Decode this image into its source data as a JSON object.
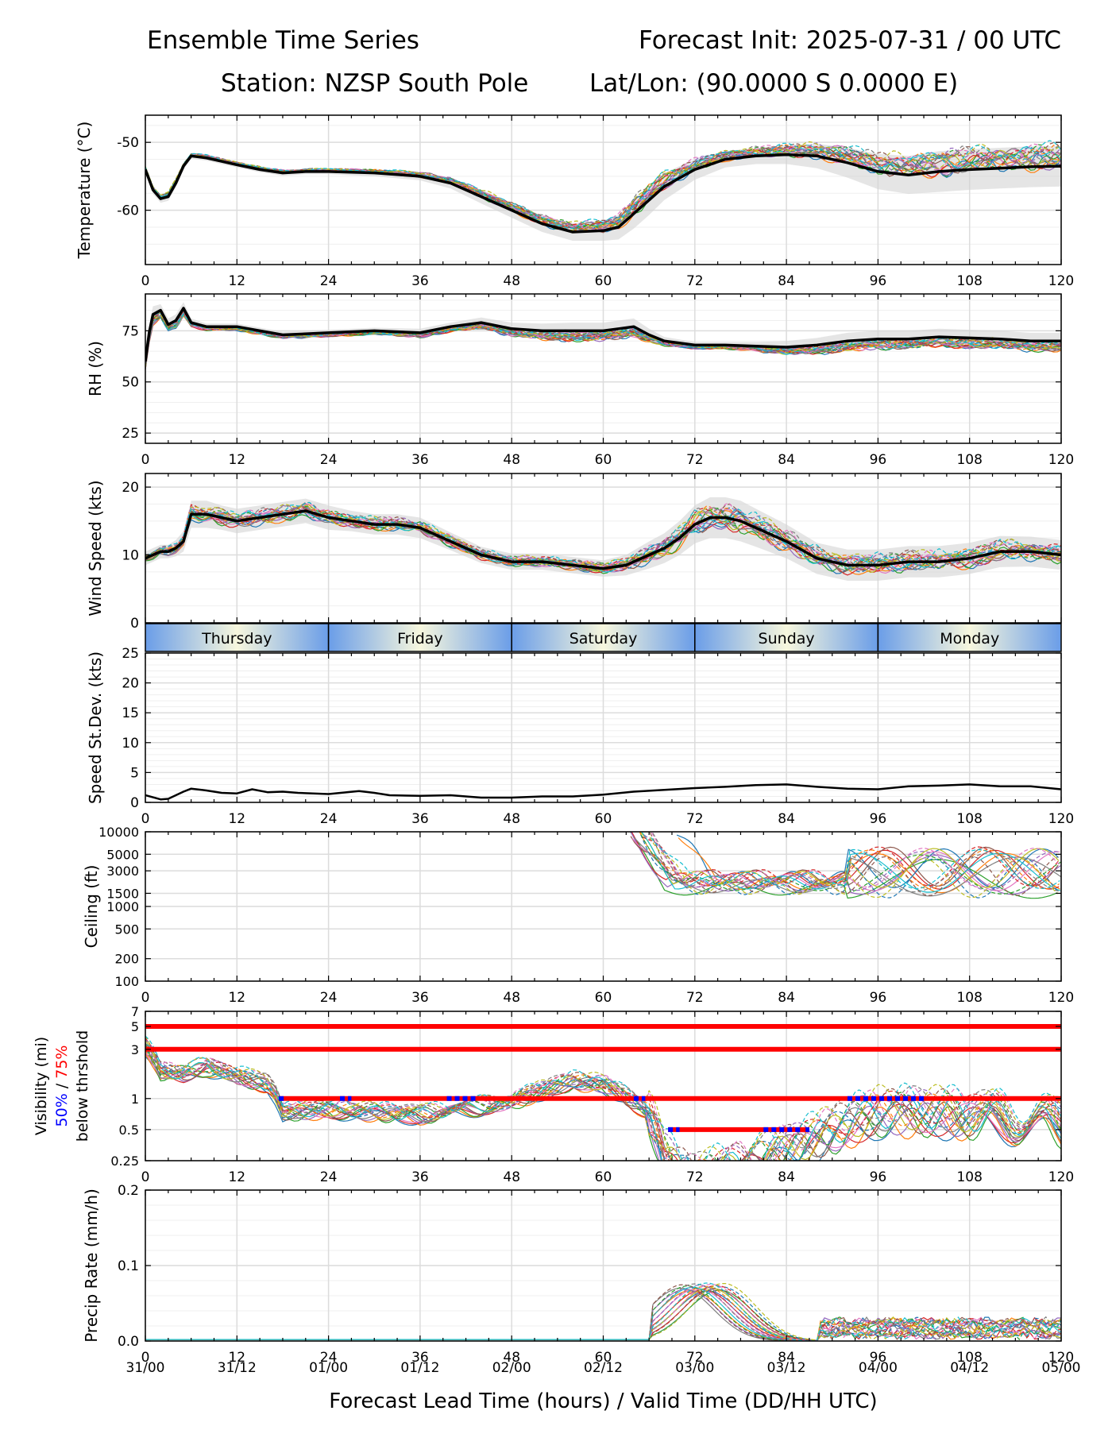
{
  "header": {
    "title": "Ensemble Time Series",
    "init": "Forecast Init: 2025-07-31 / 00 UTC",
    "station": "Station: NZSP South Pole",
    "latlon": "Lat/Lon: (90.0000 S 0.0000 E)"
  },
  "xaxis": {
    "hour_ticks": [
      "0",
      "12",
      "24",
      "36",
      "48",
      "60",
      "72",
      "84",
      "96",
      "108",
      "120"
    ],
    "valid_ticks": [
      "31/00",
      "31/12",
      "01/00",
      "01/12",
      "02/00",
      "02/12",
      "03/00",
      "03/12",
      "04/00",
      "04/12",
      "05/00"
    ],
    "label": "Forecast Lead Time (hours) / Valid Time (DD/HH UTC)"
  },
  "days": [
    "Thursday",
    "Friday",
    "Saturday",
    "Sunday",
    "Monday"
  ],
  "vis_ylabel": {
    "line1": "Visibility (mi)",
    "p50": "50%",
    "sep": " / ",
    "p75": "75%",
    "line3": "below thrshold"
  },
  "colors": {
    "mean": "#000000",
    "p50_marker": "#0000ff",
    "p75_marker": "#ff0000",
    "spread_fill": "#d3d3d3",
    "day_gradient_edge": "#6a9de8",
    "day_gradient_center": "#f7f7dd",
    "members": [
      "#1f77b4",
      "#ff7f0e",
      "#2ca02c",
      "#d62728",
      "#9467bd",
      "#8c564b",
      "#e377c2",
      "#7f7f7f",
      "#bcbd22",
      "#17becf"
    ]
  },
  "chart_data": [
    {
      "id": "temperature",
      "type": "line",
      "ylabel": "Temperature (°C)",
      "ylim": [
        -68,
        -46
      ],
      "yticks": [
        "-50",
        "-60"
      ],
      "ytick_values": [
        -50,
        -60
      ],
      "x": [
        0,
        1,
        2,
        3,
        4,
        5,
        6,
        8,
        10,
        12,
        15,
        18,
        21,
        24,
        30,
        36,
        40,
        44,
        48,
        52,
        56,
        60,
        62,
        64,
        66,
        68,
        72,
        76,
        80,
        84,
        88,
        92,
        96,
        100,
        104,
        108,
        112,
        116,
        120
      ],
      "series": [
        {
          "values": [
            -54,
            -57,
            -58.3,
            -58,
            -56,
            -53.5,
            -52,
            -52.3,
            -52.8,
            -53.3,
            -54,
            -54.5,
            -54.3,
            -54.3,
            -54.5,
            -55,
            -56,
            -58,
            -60,
            -62,
            -63.2,
            -63,
            -62.5,
            -60.5,
            -58.5,
            -56.5,
            -54,
            -52.5,
            -52,
            -51.8,
            -52,
            -53,
            -54.3,
            -54.8,
            -54.3,
            -54,
            -53.8,
            -53.6,
            -53.5
          ]
        }
      ],
      "spread_halfwidth": [
        0.5,
        0.6,
        0.6,
        0.6,
        0.6,
        0.5,
        0.4,
        0.4,
        0.4,
        0.4,
        0.4,
        0.4,
        0.4,
        0.4,
        0.5,
        0.6,
        0.8,
        1.0,
        1.1,
        1.2,
        1.3,
        1.5,
        1.8,
        2.2,
        2.2,
        2.0,
        1.5,
        1.2,
        1.2,
        1.4,
        1.8,
        2.2,
        2.6,
        2.8,
        3.0,
        3.0,
        3.0,
        3.0,
        3.0
      ]
    },
    {
      "id": "rh",
      "type": "line",
      "ylabel": "RH (%)",
      "ylim": [
        20,
        93
      ],
      "yticks": [
        "25",
        "50",
        "75"
      ],
      "ytick_values": [
        25,
        50,
        75
      ],
      "x": [
        0,
        0.5,
        1,
        2,
        3,
        4,
        5,
        6,
        8,
        12,
        18,
        24,
        30,
        36,
        40,
        44,
        48,
        52,
        56,
        60,
        62,
        64,
        66,
        68,
        72,
        76,
        80,
        84,
        88,
        92,
        96,
        100,
        104,
        108,
        112,
        116,
        120
      ],
      "series": [
        {
          "values": [
            60,
            74,
            83,
            85,
            78,
            80,
            86,
            79,
            77,
            77,
            73,
            74,
            75,
            74,
            77,
            79,
            76,
            75,
            75,
            75,
            76,
            77,
            73,
            70,
            68,
            68,
            67.5,
            67,
            68,
            70,
            71,
            71,
            72,
            71.5,
            71,
            70,
            70
          ]
        }
      ],
      "spread_halfwidth": [
        4,
        4,
        4,
        3,
        3,
        3,
        3,
        2,
        1.5,
        1.5,
        1.5,
        1.5,
        1.5,
        2,
        2,
        2.5,
        3,
        3.5,
        4,
        4,
        4,
        4,
        3,
        2,
        1.5,
        1.5,
        2,
        3,
        3.5,
        4,
        4,
        4,
        4,
        4,
        4,
        4,
        4
      ]
    },
    {
      "id": "wind_speed",
      "type": "line",
      "ylabel": "Wind Speed (kts)",
      "ylim": [
        0,
        22
      ],
      "yticks": [
        "0",
        "10",
        "20"
      ],
      "ytick_values": [
        0,
        10,
        20
      ],
      "x": [
        0,
        1,
        2,
        3,
        4,
        5,
        6,
        8,
        10,
        12,
        15,
        18,
        21,
        24,
        27,
        30,
        33,
        36,
        40,
        44,
        48,
        52,
        56,
        60,
        63,
        66,
        68,
        70,
        72,
        74,
        76,
        78,
        80,
        84,
        88,
        92,
        96,
        100,
        104,
        108,
        112,
        116,
        120
      ],
      "series": [
        {
          "values": [
            9.5,
            10,
            10.5,
            10.5,
            11,
            12,
            16,
            16,
            15.5,
            15,
            15.5,
            16,
            16.5,
            15.5,
            15,
            14.5,
            14.5,
            14,
            12,
            10,
            9,
            9,
            8.5,
            8,
            8.5,
            10,
            11,
            12.5,
            14.5,
            15.5,
            15.5,
            15,
            14,
            12,
            9.5,
            8.5,
            8.5,
            9,
            9,
            9.5,
            10.5,
            10.5,
            10
          ]
        }
      ],
      "spread_halfwidth": [
        1,
        1,
        1,
        1,
        1.2,
        1.5,
        2,
        2,
        1.8,
        1.8,
        1.8,
        1.8,
        1.8,
        1.8,
        1.5,
        1.5,
        1.5,
        1.5,
        1.3,
        1.2,
        1.2,
        1.2,
        1.2,
        1.2,
        1.5,
        2,
        2.2,
        2.5,
        2.8,
        3,
        3,
        3,
        2.8,
        2.5,
        2.3,
        2.3,
        2.3,
        2.3,
        2.3,
        2.3,
        2.3,
        2.2,
        2.2
      ]
    },
    {
      "id": "speed_stdev",
      "type": "line",
      "ylabel": "Speed St.Dev. (kts)",
      "ylim": [
        0,
        25
      ],
      "yticks": [
        "0",
        "5",
        "10",
        "15",
        "20",
        "25"
      ],
      "ytick_values": [
        0,
        5,
        10,
        15,
        20,
        25
      ],
      "x": [
        0,
        2,
        3,
        5,
        6,
        8,
        10,
        12,
        14,
        16,
        18,
        20,
        24,
        28,
        30,
        32,
        36,
        40,
        44,
        48,
        52,
        56,
        60,
        64,
        68,
        72,
        76,
        80,
        84,
        88,
        92,
        96,
        100,
        104,
        108,
        112,
        116,
        120
      ],
      "series": [
        {
          "values": [
            1.2,
            0.5,
            0.6,
            1.8,
            2.3,
            2,
            1.6,
            1.5,
            2.2,
            1.7,
            1.8,
            1.6,
            1.4,
            1.9,
            1.6,
            1.2,
            1.1,
            1.2,
            0.8,
            0.8,
            1,
            1,
            1.3,
            1.8,
            2.1,
            2.4,
            2.6,
            2.9,
            3,
            2.6,
            2.3,
            2.2,
            2.7,
            2.8,
            3,
            2.7,
            2.7,
            2.2
          ]
        }
      ]
    },
    {
      "id": "ceiling",
      "type": "line",
      "ylabel": "Ceiling (ft)",
      "yscale": "log",
      "ylim": [
        100,
        10000
      ],
      "yticks": [
        "100",
        "200",
        "500",
        "1000",
        "1500",
        "3000",
        "5000",
        "10000"
      ],
      "ytick_values": [
        100,
        200,
        500,
        1000,
        1500,
        3000,
        5000,
        10000
      ],
      "x": [
        0,
        120
      ],
      "series": []
    },
    {
      "id": "visibility",
      "type": "line",
      "ylabel": "Visibility (mi) / 50% / 75% / below thrshold",
      "yscale": "log",
      "ylim": [
        0.25,
        7
      ],
      "yticks": [
        "0.25",
        "0.5",
        "1",
        "3",
        "5",
        "7"
      ],
      "ytick_values": [
        0.25,
        0.5,
        1,
        3,
        5,
        7
      ],
      "x": [
        0,
        120
      ],
      "series": [],
      "threshold_bars": [
        {
          "level": 5,
          "x0": 0,
          "x1": 120,
          "prob": "75%"
        },
        {
          "level": 3,
          "x0": 0,
          "x1": 120,
          "prob": "75%"
        },
        {
          "level": 1,
          "x0": 17.5,
          "x1": 120,
          "prob": "75%"
        },
        {
          "level": 0.5,
          "x0": 68.5,
          "x1": 87,
          "prob": "75%"
        }
      ],
      "p50_segments": [
        {
          "level": 1,
          "x0": 17.5,
          "x1": 18.5
        },
        {
          "level": 1,
          "x0": 25.5,
          "x1": 27
        },
        {
          "level": 1,
          "x0": 39.5,
          "x1": 43.5
        },
        {
          "level": 1,
          "x0": 64,
          "x1": 65.5
        },
        {
          "level": 1,
          "x0": 92,
          "x1": 102
        },
        {
          "level": 0.5,
          "x0": 68.5,
          "x1": 70
        },
        {
          "level": 0.5,
          "x0": 81,
          "x1": 86
        },
        {
          "level": 0.5,
          "x0": 86.5,
          "x1": 87
        }
      ]
    },
    {
      "id": "precip",
      "type": "line",
      "ylabel": "Precip Rate (mm/h)",
      "ylim": [
        0,
        0.2
      ],
      "yticks": [
        "0.0",
        "0.1",
        "0.2"
      ],
      "ytick_values": [
        0,
        0.1,
        0.2
      ],
      "x": [
        0,
        120
      ],
      "series": []
    }
  ]
}
